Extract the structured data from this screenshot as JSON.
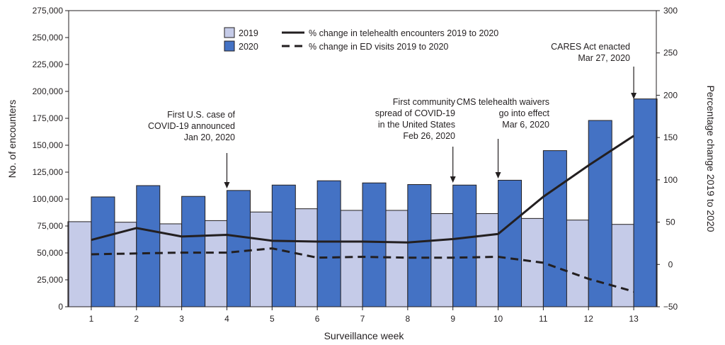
{
  "chart_data": {
    "type": "bar",
    "xlabel": "Surveillance week",
    "ylabel": "No. of encounters",
    "y2label": "Percentage change 2019 to 2020",
    "ylim": [
      0,
      275000
    ],
    "y2lim": [
      -50,
      300
    ],
    "yticks": [
      "0",
      "25,000",
      "50,000",
      "75,000",
      "100,000",
      "125,000",
      "150,000",
      "175,000",
      "200,000",
      "225,000",
      "250,000",
      "275,000"
    ],
    "y2ticks": [
      "−50",
      "0",
      "50",
      "100",
      "150",
      "200",
      "250",
      "300"
    ],
    "categories": [
      "1",
      "2",
      "3",
      "4",
      "5",
      "6",
      "7",
      "8",
      "9",
      "10",
      "11",
      "12",
      "13"
    ],
    "series": [
      {
        "name": "2019",
        "type": "bar",
        "axis": "left",
        "color": "#c5cbe8",
        "values": [
          79000,
          78500,
          77000,
          80000,
          88000,
          91000,
          89500,
          89500,
          86500,
          86500,
          82000,
          80500,
          76500
        ]
      },
      {
        "name": "2020",
        "type": "bar",
        "axis": "left",
        "color": "#4472c4",
        "values": [
          102000,
          112500,
          102500,
          108000,
          113000,
          117000,
          115000,
          113500,
          113000,
          117500,
          145000,
          173000,
          193000
        ]
      },
      {
        "name": "% change in telehealth encounters 2019 to 2020",
        "type": "line",
        "axis": "right",
        "style": "solid",
        "values": [
          29,
          43,
          33,
          35,
          28,
          27,
          27,
          26,
          30,
          36,
          80,
          117,
          152
        ]
      },
      {
        "name": "% change in ED visits 2019 to 2020",
        "type": "line",
        "axis": "right",
        "style": "dashed",
        "values": [
          12,
          13,
          14,
          14,
          19,
          8,
          9,
          8,
          8,
          9,
          2,
          -17,
          -32
        ]
      }
    ],
    "annotations": [
      {
        "week": 4,
        "lines": [
          "First U.S. case of",
          "COVID-19 announced",
          "Jan 20, 2020"
        ]
      },
      {
        "week": 9,
        "lines": [
          "First community",
          "spread of COVID-19",
          "in the United States",
          "Feb 26, 2020"
        ]
      },
      {
        "week": 10,
        "lines": [
          "CMS telehealth waivers",
          "go into effect",
          "Mar 6, 2020"
        ]
      },
      {
        "week": 13,
        "lines": [
          "CARES Act enacted",
          "Mar 27, 2020"
        ]
      }
    ]
  }
}
